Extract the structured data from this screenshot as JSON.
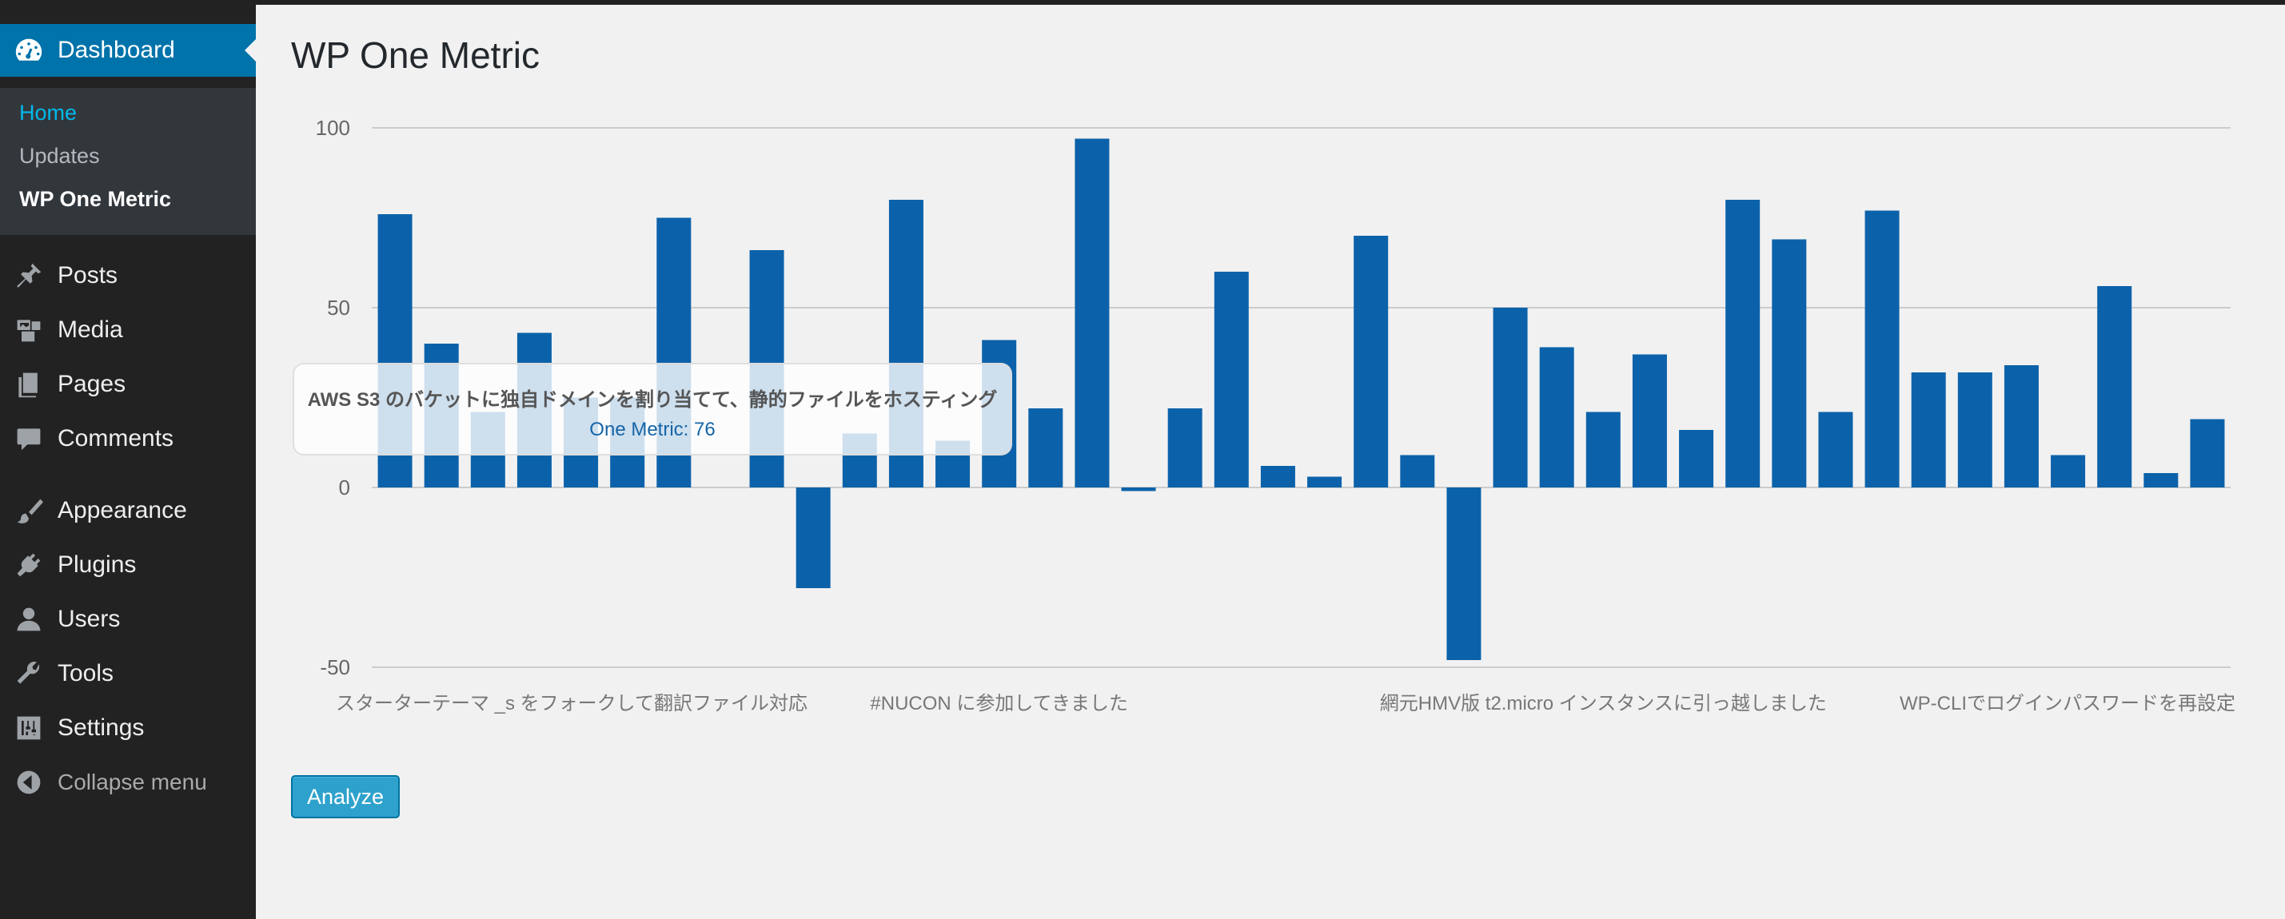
{
  "sidebar": {
    "dashboard_label": "Dashboard",
    "submenu": {
      "home": "Home",
      "updates": "Updates",
      "wp_one_metric": "WP One Metric"
    },
    "items": [
      {
        "label": "Posts",
        "icon": "pin-icon"
      },
      {
        "label": "Media",
        "icon": "media-icon"
      },
      {
        "label": "Pages",
        "icon": "pages-icon"
      },
      {
        "label": "Comments",
        "icon": "comment-icon"
      },
      {
        "label": "Appearance",
        "icon": "brush-icon"
      },
      {
        "label": "Plugins",
        "icon": "plug-icon"
      },
      {
        "label": "Users",
        "icon": "user-icon"
      },
      {
        "label": "Tools",
        "icon": "wrench-icon"
      },
      {
        "label": "Settings",
        "icon": "settings-icon"
      }
    ],
    "collapse_label": "Collapse menu",
    "colors": {
      "bg": "#222222",
      "active": "#0073aa",
      "submenu_bg": "#32373c",
      "current": "#00b9eb"
    }
  },
  "page": {
    "title": "WP One Metric",
    "analyze_button": "Analyze"
  },
  "tooltip": {
    "title": "AWS S3 のバケットに独自ドメインを割り当てて、静的ファイルをホスティング",
    "value_text": "One Metric: 76"
  },
  "chart_data": {
    "type": "bar",
    "ylim": [
      -50,
      100
    ],
    "yticks": [
      100,
      50,
      0,
      -50
    ],
    "grid": true,
    "color": "#0c62aa",
    "values": [
      76,
      40,
      21,
      43,
      25,
      25,
      75,
      0,
      66,
      -28,
      15,
      80,
      13,
      41,
      22,
      97,
      -1,
      22,
      60,
      6,
      3,
      70,
      9,
      -48,
      50,
      39,
      21,
      37,
      16,
      80,
      69,
      21,
      77,
      32,
      32,
      34,
      9,
      56,
      4,
      19
    ],
    "xlabels": [
      {
        "index": 0,
        "label": "スターターテーマ _s をフォークして翻訳ファイル対応"
      },
      {
        "index": 13,
        "label": "#NUCON に参加してきました"
      },
      {
        "index": 26,
        "label": "網元HMV版 t2.micro インスタンスに引っ越しました"
      },
      {
        "index": 39,
        "label": "WP-CLIでログインパスワードを再設定"
      }
    ]
  }
}
